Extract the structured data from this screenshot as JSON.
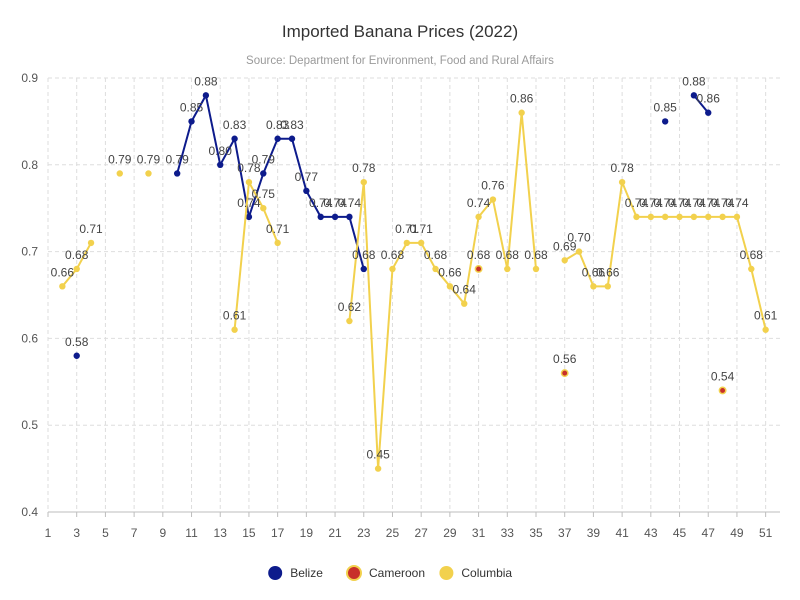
{
  "chart_data": {
    "type": "line",
    "title": "Imported Banana Prices (2022)",
    "subtitle": "Source: Department for Environment, Food and Rural Affairs",
    "xlabel": "",
    "ylabel": "",
    "xlim": [
      1,
      52
    ],
    "ylim": [
      0.4,
      0.9
    ],
    "x_ticks": [
      1,
      3,
      5,
      7,
      9,
      11,
      13,
      15,
      17,
      19,
      21,
      23,
      25,
      27,
      29,
      31,
      33,
      35,
      37,
      39,
      41,
      43,
      45,
      47,
      49,
      51
    ],
    "y_ticks": [
      0.4,
      0.5,
      0.6,
      0.7,
      0.8,
      0.9
    ],
    "grid": true,
    "legend_position": "bottom",
    "series": [
      {
        "name": "Belize",
        "color": "#0d1b8c",
        "points": [
          [
            3,
            0.58
          ],
          [
            10,
            0.79
          ],
          [
            11,
            0.85
          ],
          [
            12,
            0.88
          ],
          [
            13,
            0.8
          ],
          [
            14,
            0.83
          ],
          [
            15,
            0.74
          ],
          [
            16,
            0.79
          ],
          [
            17,
            0.83
          ],
          [
            18,
            0.83
          ],
          [
            19,
            0.77
          ],
          [
            20,
            0.74
          ],
          [
            21,
            0.74
          ],
          [
            22,
            0.74
          ],
          [
            23,
            0.68
          ],
          [
            44,
            0.85
          ],
          [
            46,
            0.88
          ],
          [
            47,
            0.86
          ]
        ],
        "segments": [
          [
            10,
            23
          ],
          [
            46,
            47
          ]
        ],
        "labels": [
          "0.58",
          "0.79",
          "0.85",
          "0.88",
          "0.80",
          "0.83",
          "0.74",
          "0.79",
          "0.83",
          "0.83",
          "0.77",
          "0.74",
          "0.74",
          "0.74",
          "0.68",
          "0.85",
          "0.88",
          "0.86"
        ]
      },
      {
        "name": "Cameroon",
        "color": "#c8302a",
        "points": [
          [
            31,
            0.68
          ],
          [
            37,
            0.56
          ],
          [
            48,
            0.54
          ]
        ],
        "segments": [],
        "labels": [
          "0.68",
          "0.56",
          "0.54"
        ]
      },
      {
        "name": "Columbia",
        "color": "#f2d14d",
        "points": [
          [
            2,
            0.66
          ],
          [
            3,
            0.68
          ],
          [
            4,
            0.71
          ],
          [
            6,
            0.79
          ],
          [
            8,
            0.79
          ],
          [
            14,
            0.61
          ],
          [
            15,
            0.78
          ],
          [
            16,
            0.75
          ],
          [
            17,
            0.71
          ],
          [
            22,
            0.62
          ],
          [
            23,
            0.78
          ],
          [
            24,
            0.45
          ],
          [
            25,
            0.68
          ],
          [
            26,
            0.71
          ],
          [
            27,
            0.71
          ],
          [
            28,
            0.68
          ],
          [
            29,
            0.66
          ],
          [
            30,
            0.64
          ],
          [
            31,
            0.74
          ],
          [
            32,
            0.76
          ],
          [
            33,
            0.68
          ],
          [
            34,
            0.86
          ],
          [
            35,
            0.68
          ],
          [
            37,
            0.69
          ],
          [
            38,
            0.7
          ],
          [
            39,
            0.66
          ],
          [
            40,
            0.66
          ],
          [
            41,
            0.78
          ],
          [
            42,
            0.74
          ],
          [
            43,
            0.74
          ],
          [
            44,
            0.74
          ],
          [
            45,
            0.74
          ],
          [
            46,
            0.74
          ],
          [
            47,
            0.74
          ],
          [
            48,
            0.74
          ],
          [
            49,
            0.74
          ],
          [
            50,
            0.68
          ],
          [
            51,
            0.61
          ]
        ],
        "segments": [
          [
            2,
            4
          ],
          [
            14,
            17
          ],
          [
            22,
            35
          ],
          [
            37,
            51
          ]
        ],
        "labels": [
          "0.66",
          "0.68",
          "0.71",
          "0.79",
          "0.79",
          "0.61",
          "0.78",
          "0.75",
          "0.71",
          "0.62",
          "0.78",
          "0.45",
          "0.68",
          "0.71",
          "0.71",
          "0.68",
          "0.66",
          "0.64",
          "0.74",
          "0.76",
          "0.68",
          "0.86",
          "0.68",
          "0.69",
          "0.70",
          "0.66",
          "0.66",
          "0.78",
          "0.74",
          "0.74",
          "0.74",
          "0.74",
          "0.74",
          "0.74",
          "0.74",
          "0.74",
          "0.68",
          "0.61"
        ]
      }
    ]
  }
}
